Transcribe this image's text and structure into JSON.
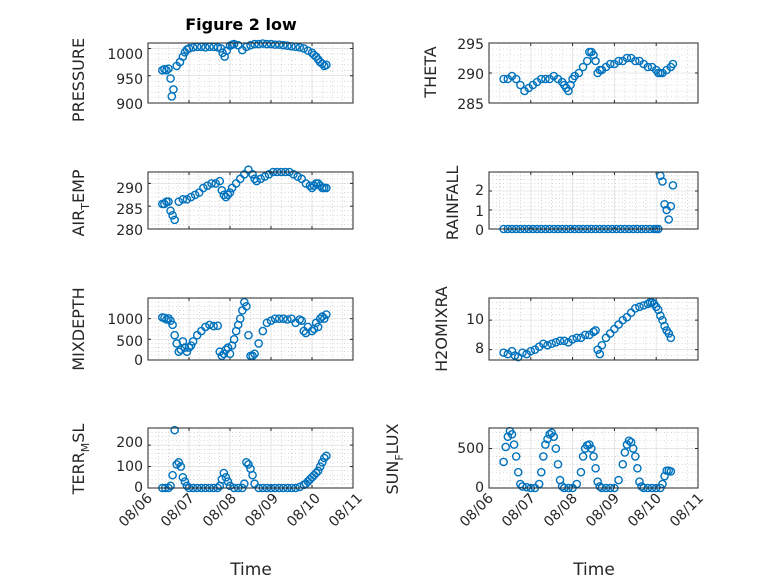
{
  "figure": {
    "title": "Figure 2 low",
    "marker_color": "#0072BD"
  },
  "chart_data": [
    {
      "id": "pressure",
      "type": "scatter",
      "title": "Figure 2 low",
      "ylabel": "PRESSURE",
      "ylim": [
        900,
        1010
      ],
      "yticks": [
        900,
        950,
        1000
      ],
      "xlim": [
        6,
        11
      ],
      "xticks": [
        6,
        7,
        8,
        9,
        10,
        11
      ],
      "grid": true,
      "minor_grid": true,
      "x": [
        6.35,
        6.4,
        6.45,
        6.5,
        6.55,
        6.58,
        6.62,
        6.7,
        6.78,
        6.85,
        6.9,
        6.95,
        7.0,
        7.1,
        7.2,
        7.3,
        7.4,
        7.5,
        7.6,
        7.7,
        7.78,
        7.82,
        7.87,
        7.92,
        8.0,
        8.05,
        8.1,
        8.2,
        8.3,
        8.4,
        8.5,
        8.6,
        8.7,
        8.8,
        8.9,
        9.0,
        9.1,
        9.2,
        9.3,
        9.4,
        9.5,
        9.6,
        9.7,
        9.8,
        9.9,
        10.0,
        10.05,
        10.1,
        10.15,
        10.2,
        10.25,
        10.3,
        10.35
      ],
      "y": [
        960,
        962,
        960,
        963,
        945,
        912,
        925,
        968,
        975,
        985,
        993,
        998,
        1000,
        1002,
        1003,
        1003,
        1002,
        1003,
        1003,
        1002,
        1000,
        992,
        985,
        996,
        1005,
        1007,
        1008,
        1006,
        997,
        1003,
        1006,
        1008,
        1008,
        1009,
        1008,
        1008,
        1007,
        1007,
        1006,
        1005,
        1004,
        1003,
        1002,
        1000,
        996,
        992,
        988,
        985,
        980,
        975,
        972,
        968,
        970
      ]
    },
    {
      "id": "theta",
      "type": "scatter",
      "ylabel": "THETA",
      "ylim": [
        285,
        295
      ],
      "yticks": [
        285,
        290,
        295
      ],
      "xlim": [
        6,
        11
      ],
      "xticks": [
        6,
        7,
        8,
        9,
        10,
        11
      ],
      "grid": true,
      "minor_grid": true,
      "x": [
        6.35,
        6.45,
        6.55,
        6.65,
        6.75,
        6.85,
        6.95,
        7.05,
        7.15,
        7.25,
        7.35,
        7.45,
        7.55,
        7.65,
        7.75,
        7.8,
        7.85,
        7.9,
        7.95,
        8.0,
        8.05,
        8.15,
        8.25,
        8.35,
        8.4,
        8.45,
        8.5,
        8.55,
        8.6,
        8.65,
        8.7,
        8.8,
        8.9,
        9.0,
        9.1,
        9.2,
        9.3,
        9.4,
        9.5,
        9.6,
        9.7,
        9.8,
        9.9,
        10.0,
        10.05,
        10.1,
        10.15,
        10.25,
        10.35,
        10.4
      ],
      "y": [
        289,
        289,
        289.5,
        289,
        288,
        287,
        287.5,
        288,
        288.5,
        289,
        289,
        289,
        289.5,
        289,
        288.5,
        288,
        287.5,
        287,
        288,
        289,
        289.5,
        290,
        291,
        292,
        293.5,
        293.5,
        293,
        292,
        290,
        290.5,
        290.5,
        291,
        291.5,
        291.5,
        292,
        292,
        292.5,
        292.5,
        292,
        292,
        291.5,
        291,
        291,
        290.5,
        290,
        290,
        290,
        290.5,
        291,
        291.5
      ]
    },
    {
      "id": "air_temp",
      "type": "scatter",
      "ylabel": "AIR_TEMP",
      "ylim": [
        280,
        292.5
      ],
      "yticks": [
        280,
        285,
        290
      ],
      "xlim": [
        6,
        11
      ],
      "xticks": [
        6,
        7,
        8,
        9,
        10,
        11
      ],
      "grid": true,
      "minor_grid": true,
      "x": [
        6.35,
        6.4,
        6.45,
        6.5,
        6.55,
        6.6,
        6.65,
        6.75,
        6.85,
        6.95,
        7.05,
        7.15,
        7.25,
        7.35,
        7.45,
        7.55,
        7.65,
        7.75,
        7.8,
        7.85,
        7.9,
        7.95,
        8.0,
        8.05,
        8.15,
        8.25,
        8.35,
        8.45,
        8.55,
        8.6,
        8.65,
        8.75,
        8.85,
        8.95,
        9.05,
        9.15,
        9.25,
        9.35,
        9.45,
        9.55,
        9.65,
        9.75,
        9.85,
        9.95,
        10.0,
        10.05,
        10.1,
        10.15,
        10.2,
        10.25,
        10.3,
        10.35
      ],
      "y": [
        285.5,
        285.5,
        286,
        286,
        284,
        283,
        282,
        286,
        286.5,
        286.5,
        287,
        287.5,
        288,
        289,
        289.5,
        290,
        290,
        290.5,
        288.5,
        287.5,
        287,
        287.5,
        288,
        289,
        290,
        291,
        292,
        293,
        292,
        291,
        290.5,
        291,
        291.5,
        292,
        292.5,
        292.5,
        292.5,
        292.5,
        292.5,
        292,
        291.5,
        291,
        290,
        289.5,
        289,
        289.5,
        290,
        290,
        289.5,
        289,
        289,
        289
      ]
    },
    {
      "id": "rainfall",
      "type": "scatter",
      "ylabel": "RAINFALL",
      "ylim": [
        0,
        3
      ],
      "yticks": [
        0,
        1,
        2
      ],
      "xlim": [
        6,
        11
      ],
      "xticks": [
        6,
        7,
        8,
        9,
        10,
        11
      ],
      "grid": true,
      "minor_grid": true,
      "x": [
        6.35,
        6.45,
        6.55,
        6.65,
        6.75,
        6.85,
        6.95,
        7.05,
        7.15,
        7.25,
        7.35,
        7.45,
        7.55,
        7.65,
        7.75,
        7.85,
        7.95,
        8.05,
        8.15,
        8.25,
        8.35,
        8.45,
        8.55,
        8.65,
        8.75,
        8.85,
        8.95,
        9.05,
        9.15,
        9.25,
        9.35,
        9.45,
        9.55,
        9.65,
        9.75,
        9.85,
        9.95,
        10.0,
        10.05,
        10.1,
        10.15,
        10.2,
        10.25,
        10.3,
        10.35,
        10.4
      ],
      "y": [
        0,
        0,
        0,
        0,
        0,
        0,
        0,
        0,
        0,
        0,
        0,
        0,
        0,
        0,
        0,
        0,
        0,
        0,
        0,
        0,
        0,
        0,
        0,
        0,
        0,
        0,
        0,
        0,
        0,
        0,
        0,
        0,
        0,
        0,
        0,
        0,
        0,
        0,
        0,
        2.8,
        2.5,
        1.3,
        1.0,
        0.5,
        1.2,
        2.3
      ]
    },
    {
      "id": "mixdepth",
      "type": "scatter",
      "ylabel": "MIXDEPTH",
      "ylim": [
        0,
        1500
      ],
      "yticks": [
        0,
        500,
        1000
      ],
      "xlim": [
        6,
        11
      ],
      "xticks": [
        6,
        7,
        8,
        9,
        10,
        11
      ],
      "grid": true,
      "minor_grid": true,
      "x": [
        6.35,
        6.4,
        6.45,
        6.5,
        6.55,
        6.6,
        6.65,
        6.7,
        6.75,
        6.8,
        6.85,
        6.9,
        6.95,
        7.0,
        7.05,
        7.1,
        7.2,
        7.3,
        7.4,
        7.5,
        7.6,
        7.7,
        7.75,
        7.8,
        7.85,
        7.9,
        7.95,
        8.0,
        8.05,
        8.1,
        8.15,
        8.2,
        8.25,
        8.3,
        8.35,
        8.4,
        8.45,
        8.5,
        8.55,
        8.6,
        8.7,
        8.8,
        8.9,
        9.0,
        9.1,
        9.2,
        9.3,
        9.4,
        9.5,
        9.6,
        9.7,
        9.75,
        9.8,
        9.85,
        9.9,
        10.0,
        10.05,
        10.1,
        10.15,
        10.2,
        10.25,
        10.3,
        10.35
      ],
      "y": [
        1030,
        1020,
        980,
        1010,
        950,
        850,
        600,
        400,
        200,
        250,
        450,
        300,
        200,
        300,
        350,
        450,
        600,
        700,
        800,
        850,
        820,
        830,
        200,
        100,
        150,
        250,
        300,
        150,
        350,
        500,
        700,
        850,
        1000,
        1200,
        1400,
        1300,
        600,
        100,
        100,
        150,
        400,
        700,
        900,
        950,
        1000,
        1000,
        1000,
        980,
        1000,
        900,
        980,
        950,
        700,
        650,
        800,
        700,
        750,
        900,
        800,
        1000,
        1050,
        1000,
        1100
      ]
    },
    {
      "id": "h2omixra",
      "type": "scatter",
      "ylabel": "H2OMIXRA",
      "ylim": [
        7.3,
        11.5
      ],
      "yticks": [
        8,
        10
      ],
      "xlim": [
        6,
        11
      ],
      "xticks": [
        6,
        7,
        8,
        9,
        10,
        11
      ],
      "grid": true,
      "minor_grid": true,
      "x": [
        6.35,
        6.45,
        6.55,
        6.62,
        6.7,
        6.8,
        6.9,
        7.0,
        7.1,
        7.2,
        7.3,
        7.4,
        7.5,
        7.6,
        7.7,
        7.8,
        7.9,
        8.0,
        8.1,
        8.2,
        8.3,
        8.4,
        8.5,
        8.55,
        8.6,
        8.65,
        8.7,
        8.8,
        8.9,
        9.0,
        9.1,
        9.2,
        9.3,
        9.4,
        9.5,
        9.6,
        9.7,
        9.8,
        9.85,
        9.9,
        9.95,
        10.0,
        10.05,
        10.1,
        10.15,
        10.2,
        10.25,
        10.3,
        10.35
      ],
      "y": [
        7.8,
        7.7,
        7.9,
        7.6,
        7.5,
        7.8,
        7.7,
        7.9,
        8.0,
        8.2,
        8.4,
        8.3,
        8.4,
        8.5,
        8.6,
        8.6,
        8.5,
        8.7,
        8.8,
        8.8,
        9.0,
        9.0,
        9.2,
        9.3,
        8.0,
        7.7,
        8.3,
        8.8,
        9.1,
        9.4,
        9.7,
        10.0,
        10.2,
        10.5,
        10.8,
        10.9,
        11.0,
        11.1,
        11.2,
        11.2,
        11.1,
        10.9,
        10.7,
        10.3,
        10.0,
        9.6,
        9.3,
        9.1,
        8.8
      ]
    },
    {
      "id": "terr_msl",
      "type": "scatter",
      "ylabel": "TERR_MSL",
      "ylim": [
        0,
        280
      ],
      "yticks": [
        0,
        100,
        200
      ],
      "xlim": [
        6,
        11
      ],
      "xticks": [
        6,
        7,
        8,
        9,
        10,
        11
      ],
      "grid": true,
      "minor_grid": true,
      "x": [
        6.35,
        6.42,
        6.5,
        6.55,
        6.6,
        6.65,
        6.7,
        6.75,
        6.8,
        6.85,
        6.9,
        6.95,
        7.0,
        7.1,
        7.2,
        7.3,
        7.4,
        7.5,
        7.6,
        7.7,
        7.75,
        7.8,
        7.85,
        7.9,
        7.95,
        8.0,
        8.1,
        8.2,
        8.3,
        8.35,
        8.4,
        8.45,
        8.5,
        8.55,
        8.6,
        8.7,
        8.8,
        8.9,
        9.0,
        9.1,
        9.2,
        9.3,
        9.4,
        9.5,
        9.6,
        9.7,
        9.8,
        9.85,
        9.9,
        9.95,
        10.0,
        10.05,
        10.1,
        10.15,
        10.2,
        10.25,
        10.3,
        10.35
      ],
      "y": [
        0,
        0,
        0,
        10,
        60,
        270,
        110,
        120,
        100,
        50,
        30,
        10,
        0,
        0,
        0,
        0,
        0,
        0,
        0,
        0,
        10,
        40,
        70,
        50,
        30,
        10,
        0,
        0,
        0,
        20,
        120,
        110,
        90,
        60,
        20,
        0,
        0,
        0,
        0,
        0,
        0,
        0,
        0,
        0,
        0,
        5,
        15,
        20,
        30,
        40,
        50,
        60,
        70,
        80,
        100,
        120,
        140,
        150
      ]
    },
    {
      "id": "sun_flux",
      "type": "scatter",
      "ylabel": "SUN_FLUX",
      "ylim": [
        0,
        760
      ],
      "yticks": [
        0,
        500
      ],
      "xlim": [
        6,
        11
      ],
      "xticks": [
        6,
        7,
        8,
        9,
        10,
        11
      ],
      "grid": true,
      "minor_grid": true,
      "x": [
        6.35,
        6.4,
        6.45,
        6.5,
        6.55,
        6.6,
        6.65,
        6.7,
        6.75,
        6.8,
        6.9,
        7.0,
        7.1,
        7.2,
        7.25,
        7.3,
        7.35,
        7.4,
        7.45,
        7.5,
        7.55,
        7.6,
        7.65,
        7.7,
        7.75,
        7.8,
        7.9,
        8.0,
        8.1,
        8.2,
        8.25,
        8.3,
        8.35,
        8.4,
        8.45,
        8.5,
        8.55,
        8.6,
        8.65,
        8.7,
        8.8,
        8.9,
        9.0,
        9.1,
        9.2,
        9.25,
        9.3,
        9.35,
        9.4,
        9.45,
        9.5,
        9.55,
        9.6,
        9.65,
        9.7,
        9.8,
        9.9,
        10.0,
        10.1,
        10.15,
        10.2,
        10.25,
        10.3,
        10.35
      ],
      "y": [
        330,
        520,
        650,
        720,
        680,
        550,
        400,
        200,
        50,
        20,
        10,
        0,
        0,
        50,
        200,
        400,
        550,
        620,
        680,
        700,
        650,
        500,
        300,
        100,
        20,
        0,
        0,
        0,
        50,
        200,
        400,
        500,
        540,
        550,
        500,
        400,
        250,
        80,
        20,
        0,
        0,
        0,
        0,
        100,
        300,
        450,
        550,
        600,
        580,
        500,
        400,
        250,
        80,
        20,
        0,
        0,
        0,
        0,
        0,
        50,
        150,
        220,
        220,
        210
      ]
    }
  ],
  "axes_x": {
    "xlabel": "Time",
    "tick_labels": [
      "08/06",
      "08/07",
      "08/08",
      "08/09",
      "08/10",
      "08/11"
    ]
  },
  "panel_labels": {
    "pressure": {
      "ylabel": "PRESSURE",
      "ticks": [
        "900",
        "950",
        "1000"
      ]
    },
    "theta": {
      "ylabel": "THETA",
      "ticks": [
        "285",
        "290",
        "295"
      ]
    },
    "air_temp": {
      "ylabel_main": "AIR",
      "ylabel_sub": "T",
      "ylabel_tail": "EMP",
      "ticks": [
        "280",
        "285",
        "290"
      ]
    },
    "rainfall": {
      "ylabel": "RAINFALL",
      "ticks": [
        "0",
        "1",
        "2"
      ]
    },
    "mixdepth": {
      "ylabel": "MIXDEPTH",
      "ticks": [
        "0",
        "500",
        "1000"
      ]
    },
    "h2omixra": {
      "ylabel": "H2OMIXRA",
      "ticks": [
        "8",
        "10"
      ]
    },
    "terr_msl": {
      "ylabel_main": "TERR",
      "ylabel_sub": "M",
      "ylabel_tail": "SL",
      "ticks": [
        "0",
        "100",
        "200"
      ]
    },
    "sun_flux": {
      "ylabel_main": "SUN",
      "ylabel_sub": "F",
      "ylabel_tail": "LUX",
      "ticks": [
        "0",
        "500"
      ]
    }
  }
}
